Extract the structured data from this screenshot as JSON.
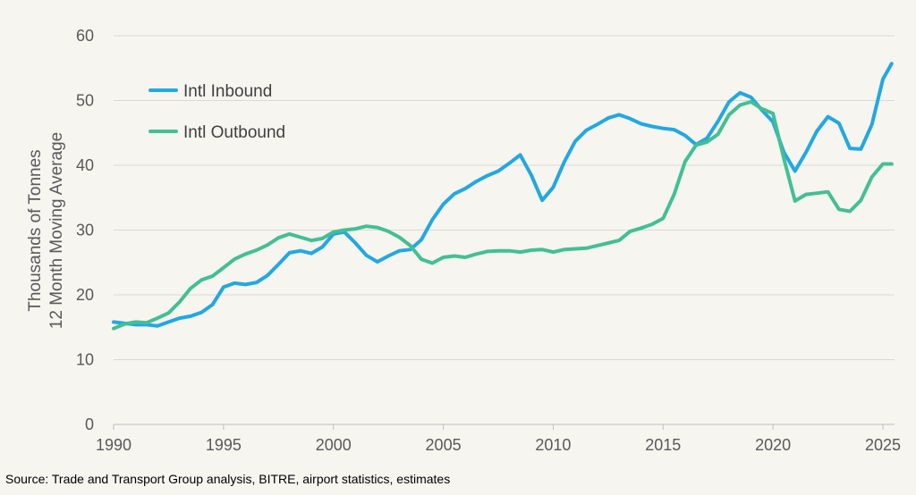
{
  "chart_data": {
    "type": "line",
    "ylabel": [
      "Thousands of Tonnes",
      "12 Month Moving Average"
    ],
    "xlabel": "",
    "xlim": [
      1990,
      2025.4
    ],
    "ylim": [
      0,
      60
    ],
    "x_ticks": [
      1990,
      1995,
      2000,
      2005,
      2010,
      2015,
      2020,
      2025
    ],
    "y_ticks": [
      0,
      10,
      20,
      30,
      40,
      50,
      60
    ],
    "grid": "horizontal",
    "legend_position": "top-left",
    "series": [
      {
        "name": "Intl Inbound",
        "color": "#23a8e0",
        "points": [
          [
            1990,
            15.8
          ],
          [
            1990.5,
            15.6
          ],
          [
            1991,
            15.4
          ],
          [
            1991.5,
            15.4
          ],
          [
            1992,
            15.2
          ],
          [
            1992.5,
            15.8
          ],
          [
            1993,
            16.4
          ],
          [
            1993.5,
            16.7
          ],
          [
            1994,
            17.3
          ],
          [
            1994.5,
            18.5
          ],
          [
            1995,
            21.2
          ],
          [
            1995.5,
            21.8
          ],
          [
            1996,
            21.6
          ],
          [
            1996.5,
            21.9
          ],
          [
            1997,
            23.0
          ],
          [
            1997.5,
            24.7
          ],
          [
            1998,
            26.5
          ],
          [
            1998.5,
            26.8
          ],
          [
            1999,
            26.4
          ],
          [
            1999.5,
            27.4
          ],
          [
            2000,
            29.4
          ],
          [
            2000.5,
            29.7
          ],
          [
            2001,
            28.0
          ],
          [
            2001.5,
            26.1
          ],
          [
            2002,
            25.1
          ],
          [
            2002.5,
            26.0
          ],
          [
            2003,
            26.8
          ],
          [
            2003.5,
            27.0
          ],
          [
            2004,
            28.5
          ],
          [
            2004.5,
            31.6
          ],
          [
            2005,
            34.0
          ],
          [
            2005.5,
            35.6
          ],
          [
            2006,
            36.4
          ],
          [
            2006.5,
            37.5
          ],
          [
            2007,
            38.4
          ],
          [
            2007.5,
            39.1
          ],
          [
            2008,
            40.3
          ],
          [
            2008.5,
            41.6
          ],
          [
            2009,
            38.5
          ],
          [
            2009.5,
            34.6
          ],
          [
            2010,
            36.6
          ],
          [
            2010.5,
            40.5
          ],
          [
            2011,
            43.7
          ],
          [
            2011.5,
            45.4
          ],
          [
            2012,
            46.3
          ],
          [
            2012.5,
            47.3
          ],
          [
            2013,
            47.8
          ],
          [
            2013.5,
            47.2
          ],
          [
            2014,
            46.4
          ],
          [
            2014.5,
            46.0
          ],
          [
            2015,
            45.7
          ],
          [
            2015.5,
            45.5
          ],
          [
            2016,
            44.6
          ],
          [
            2016.5,
            43.2
          ],
          [
            2017,
            44.2
          ],
          [
            2017.5,
            46.8
          ],
          [
            2018,
            49.8
          ],
          [
            2018.5,
            51.2
          ],
          [
            2019,
            50.5
          ],
          [
            2019.5,
            48.5
          ],
          [
            2020,
            46.7
          ],
          [
            2020.5,
            42.0
          ],
          [
            2021,
            39.1
          ],
          [
            2021.5,
            42.0
          ],
          [
            2022,
            45.3
          ],
          [
            2022.5,
            47.5
          ],
          [
            2023,
            46.5
          ],
          [
            2023.5,
            42.6
          ],
          [
            2024,
            42.5
          ],
          [
            2024.5,
            46.3
          ],
          [
            2025,
            53.3
          ],
          [
            2025.4,
            55.7
          ]
        ]
      },
      {
        "name": "Intl Outbound",
        "color": "#43bf94",
        "points": [
          [
            1990,
            14.8
          ],
          [
            1990.5,
            15.5
          ],
          [
            1991,
            15.8
          ],
          [
            1991.5,
            15.7
          ],
          [
            1992,
            16.4
          ],
          [
            1992.5,
            17.2
          ],
          [
            1993,
            18.9
          ],
          [
            1993.5,
            21.0
          ],
          [
            1994,
            22.3
          ],
          [
            1994.5,
            22.9
          ],
          [
            1995,
            24.2
          ],
          [
            1995.5,
            25.5
          ],
          [
            1996,
            26.3
          ],
          [
            1996.5,
            26.9
          ],
          [
            1997,
            27.7
          ],
          [
            1997.5,
            28.8
          ],
          [
            1998,
            29.4
          ],
          [
            1998.5,
            28.9
          ],
          [
            1999,
            28.4
          ],
          [
            1999.5,
            28.7
          ],
          [
            2000,
            29.7
          ],
          [
            2000.5,
            30.0
          ],
          [
            2001,
            30.2
          ],
          [
            2001.5,
            30.6
          ],
          [
            2002,
            30.4
          ],
          [
            2002.5,
            29.8
          ],
          [
            2003,
            28.9
          ],
          [
            2003.5,
            27.6
          ],
          [
            2004,
            25.5
          ],
          [
            2004.5,
            24.9
          ],
          [
            2005,
            25.8
          ],
          [
            2005.5,
            26.0
          ],
          [
            2006,
            25.8
          ],
          [
            2006.5,
            26.3
          ],
          [
            2007,
            26.7
          ],
          [
            2007.5,
            26.8
          ],
          [
            2008,
            26.8
          ],
          [
            2008.5,
            26.6
          ],
          [
            2009,
            26.9
          ],
          [
            2009.5,
            27.0
          ],
          [
            2010,
            26.6
          ],
          [
            2010.5,
            27.0
          ],
          [
            2011,
            27.1
          ],
          [
            2011.5,
            27.2
          ],
          [
            2012,
            27.6
          ],
          [
            2012.5,
            28.0
          ],
          [
            2013,
            28.4
          ],
          [
            2013.5,
            29.8
          ],
          [
            2014,
            30.3
          ],
          [
            2014.5,
            30.9
          ],
          [
            2015,
            31.8
          ],
          [
            2015.5,
            35.5
          ],
          [
            2016,
            40.6
          ],
          [
            2016.5,
            43.1
          ],
          [
            2017,
            43.6
          ],
          [
            2017.5,
            44.8
          ],
          [
            2018,
            47.8
          ],
          [
            2018.5,
            49.3
          ],
          [
            2019,
            49.8
          ],
          [
            2019.5,
            48.7
          ],
          [
            2020,
            48.0
          ],
          [
            2020.5,
            41.0
          ],
          [
            2021,
            34.5
          ],
          [
            2021.5,
            35.5
          ],
          [
            2022,
            35.7
          ],
          [
            2022.5,
            35.9
          ],
          [
            2023,
            33.2
          ],
          [
            2023.5,
            32.9
          ],
          [
            2024,
            34.6
          ],
          [
            2024.5,
            38.2
          ],
          [
            2025,
            40.2
          ],
          [
            2025.4,
            40.2
          ]
        ]
      }
    ]
  },
  "source_text": "Source: Trade and Transport Group analysis, BITRE, airport statistics, estimates"
}
